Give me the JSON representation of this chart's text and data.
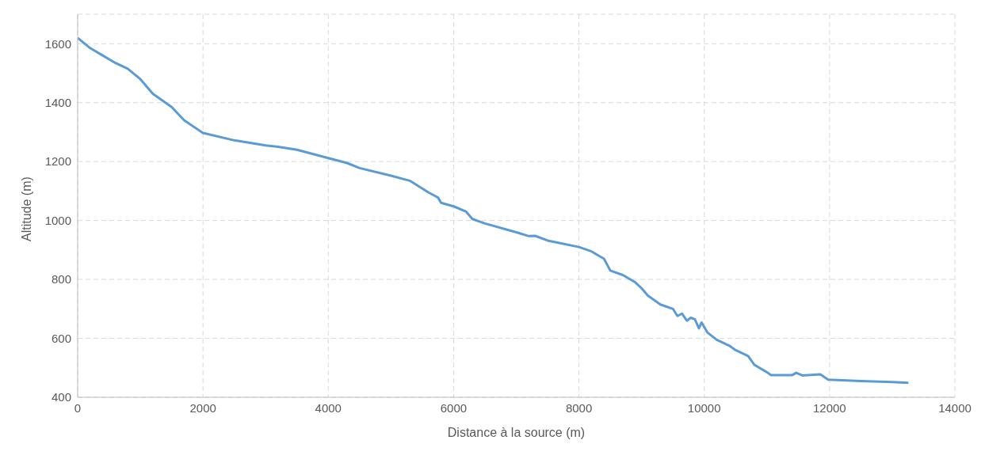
{
  "chart_data": {
    "type": "line",
    "xlabel": "Distance à la source (m)",
    "ylabel": "Altitude (m)",
    "x": [
      0,
      200,
      400,
      600,
      800,
      1000,
      1200,
      1500,
      1700,
      2000,
      2500,
      3000,
      3200,
      3500,
      4000,
      4300,
      4500,
      5000,
      5300,
      5600,
      5690,
      5750,
      5800,
      6000,
      6200,
      6300,
      6500,
      7000,
      7200,
      7300,
      7500,
      8000,
      8200,
      8400,
      8500,
      8700,
      8900,
      9000,
      9100,
      9300,
      9500,
      9572,
      9645,
      9722,
      9786,
      9850,
      9915,
      9957,
      10050,
      10200,
      10400,
      10500,
      10700,
      10800,
      11000,
      11066,
      11400,
      11467,
      11567,
      11852,
      11978,
      12500,
      13000,
      13258
    ],
    "series": [
      {
        "color": "#5b9bd5",
        "values": [
          1620,
          1585,
          1560,
          1535,
          1515,
          1480,
          1430,
          1385,
          1340,
          1297,
          1272,
          1255,
          1250,
          1240,
          1212,
          1195,
          1178,
          1152,
          1135,
          1095,
          1085,
          1078,
          1060,
          1048,
          1030,
          1005,
          990,
          960,
          947,
          948,
          932,
          910,
          895,
          870,
          830,
          815,
          790,
          770,
          745,
          715,
          700,
          676,
          684,
          660,
          670,
          665,
          634,
          654,
          620,
          595,
          575,
          560,
          540,
          510,
          485,
          475,
          475,
          483,
          474,
          478,
          460,
          455,
          452,
          449
        ]
      }
    ],
    "xlim": [
      0,
      14000
    ],
    "xticks": [
      0,
      2000,
      4000,
      6000,
      8000,
      10000,
      12000,
      14000
    ],
    "ylim": [
      400,
      1700
    ],
    "yticks": [
      400,
      600,
      800,
      1000,
      1200,
      1400,
      1600
    ],
    "grid": true,
    "legend": false,
    "marker": "none",
    "line_style": "solid"
  }
}
